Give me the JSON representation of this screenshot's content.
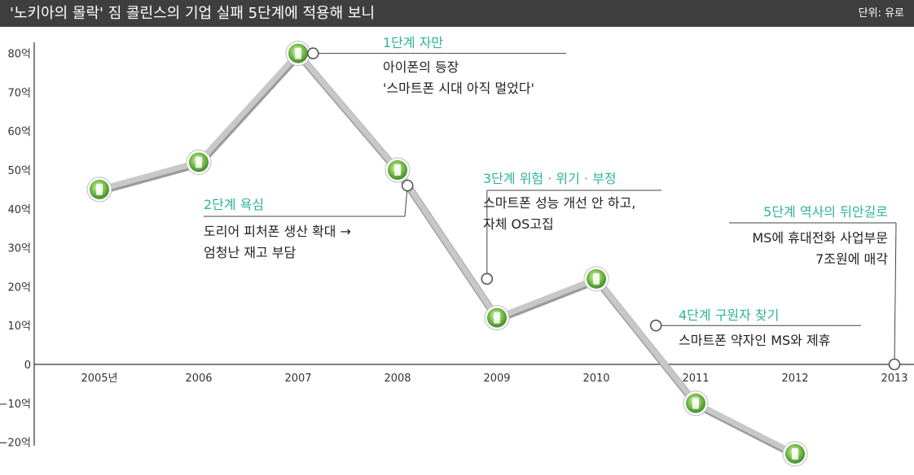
{
  "title": "'노키아의 몰락' 짐 콜린스의 기업 실패 5단계에 적용해 보니",
  "unit": "단위: 유로",
  "colors": {
    "title_bg": "#3f3f3f",
    "accent": "#2fb39a",
    "line": "#c8c8c8",
    "marker": "#7cc04b"
  },
  "chart_data": {
    "type": "line",
    "categories": [
      "2005년",
      "2006",
      "2007",
      "2008",
      "2009",
      "2010",
      "2011",
      "2012",
      "2013"
    ],
    "values": [
      45,
      52,
      80,
      50,
      12,
      22,
      -10,
      -23,
      null
    ],
    "ylim": [
      -20,
      80
    ],
    "yticks": [
      "80억",
      "70억",
      "60억",
      "50억",
      "40억",
      "30억",
      "20억",
      "10억",
      "0",
      "−10억",
      "−20억"
    ],
    "ytick_values": [
      80,
      70,
      60,
      50,
      40,
      30,
      20,
      10,
      0,
      -10,
      -20
    ],
    "marker_icon": "phone-icon",
    "annotations": [
      {
        "stage": "1단계 자만",
        "lines": [
          "아이폰의 등장",
          "'스마트폰 시대 아직 멀었다'"
        ],
        "point_x": 2007.15,
        "point_y": 80,
        "align": "left"
      },
      {
        "stage": "2단계 욕심",
        "lines": [
          "도리어 피처폰 생산 확대 →",
          "엄청난 재고 부담"
        ],
        "point_x": 2008.1,
        "point_y": 46,
        "align": "left"
      },
      {
        "stage": "3단계 위험 · 위기 · 부정",
        "lines": [
          "스마트폰 성능 개선 안 하고,",
          "자체 OS고집"
        ],
        "point_x": 2008.9,
        "point_y": 22,
        "align": "left"
      },
      {
        "stage": "4단계 구원자 찾기",
        "lines": [
          "스마트폰 약자인 MS와 제휴"
        ],
        "point_x": 2010.6,
        "point_y": 10,
        "align": "left"
      },
      {
        "stage": "5단계 역사의 뒤안길로",
        "lines": [
          "MS에 휴대전화 사업부문",
          "7조원에 매각"
        ],
        "point_x": 2013,
        "point_y": 0,
        "align": "right"
      }
    ]
  }
}
